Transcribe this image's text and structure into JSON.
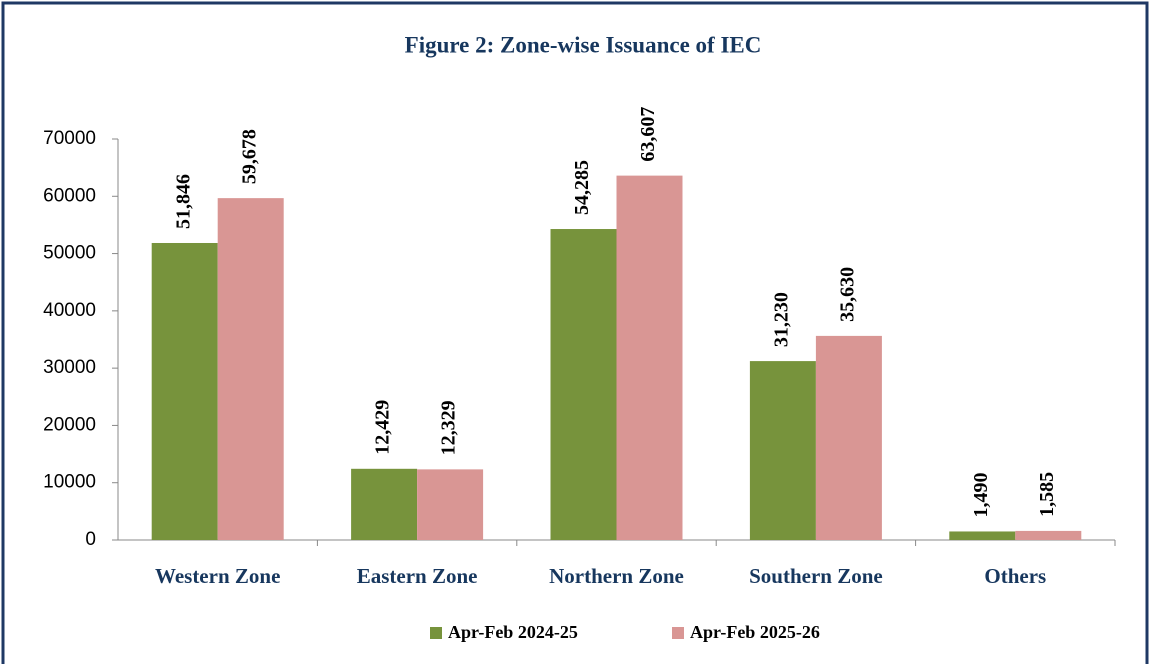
{
  "chart_data": {
    "type": "bar",
    "title": "Figure 2: Zone-wise Issuance of IEC",
    "categories": [
      "Western Zone",
      "Eastern Zone",
      "Northern Zone",
      "Southern Zone",
      "Others"
    ],
    "series": [
      {
        "name": "Apr-Feb 2024-25",
        "color": "#77933c",
        "values": [
          51846,
          12429,
          54285,
          31230,
          1490
        ],
        "value_labels": [
          "51,846",
          "12,429",
          "54,285",
          "31,230",
          "1,490"
        ]
      },
      {
        "name": "Apr-Feb 2025-26",
        "color": "#d99694",
        "values": [
          59678,
          12329,
          63607,
          35630,
          1585
        ],
        "value_labels": [
          "59,678",
          "12,329",
          "63,607",
          "35,630",
          "1,585"
        ]
      }
    ],
    "ylim": [
      0,
      70000
    ],
    "yticks": [
      0,
      10000,
      20000,
      30000,
      40000,
      50000,
      60000,
      70000
    ],
    "legend": "bottom"
  }
}
